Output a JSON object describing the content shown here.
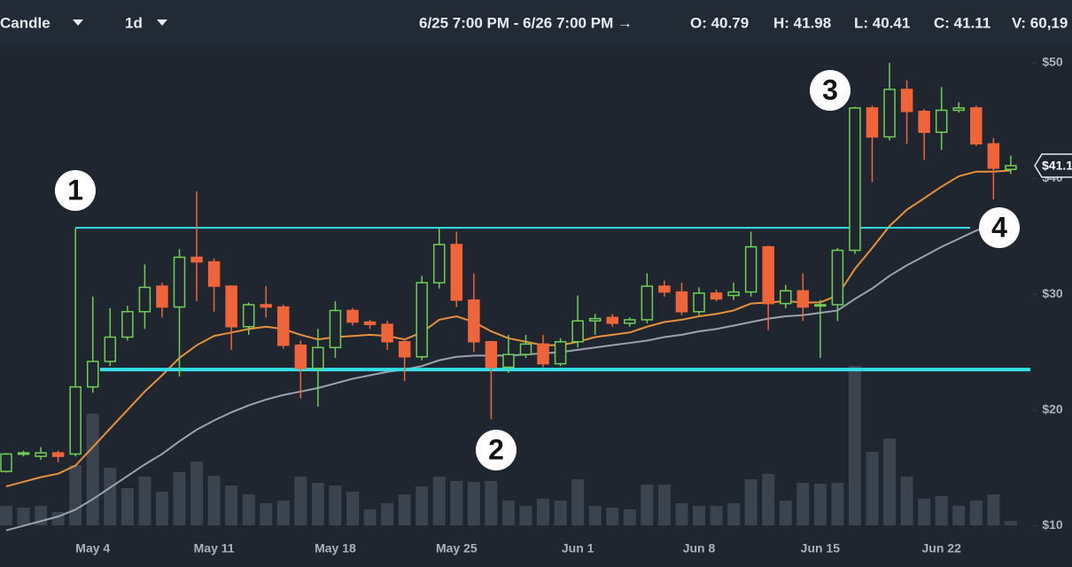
{
  "header": {
    "chart_type": "Candle",
    "interval": "1d",
    "range": "6/25 7:00 PM - 6/26 7:00 PM →",
    "open": "O: 40.79",
    "high": "H: 41.98",
    "low": "L: 40.41",
    "close": "C: 41.11",
    "volume": "V: 60,19"
  },
  "chart_data": {
    "type": "candlestick",
    "categories": [
      null,
      null,
      null,
      null,
      null,
      "May 4",
      null,
      null,
      null,
      null,
      null,
      null,
      "May 11",
      null,
      null,
      null,
      null,
      null,
      null,
      "May 18",
      null,
      null,
      null,
      null,
      null,
      null,
      "May 25",
      null,
      null,
      null,
      null,
      null,
      null,
      "Jun 1",
      null,
      null,
      null,
      null,
      null,
      null,
      "Jun 8",
      null,
      null,
      null,
      null,
      null,
      null,
      "Jun 15",
      null,
      null,
      null,
      null,
      null,
      null,
      "Jun 22",
      null,
      null,
      null,
      null
    ],
    "open": [
      14.7,
      16.2,
      16.0,
      16.3,
      16.2,
      22.0,
      24.2,
      26.3,
      28.5,
      30.7,
      28.9,
      33.2,
      32.8,
      30.7,
      27.2,
      29.1,
      28.9,
      25.6,
      23.6,
      25.4,
      28.6,
      27.6,
      27.4,
      25.9,
      24.6,
      31.0,
      34.3,
      29.5,
      25.9,
      23.7,
      24.8,
      25.7,
      24.0,
      25.9,
      27.7,
      28.0,
      27.5,
      27.8,
      30.7,
      30.2,
      28.5,
      30.1,
      29.9,
      30.2,
      34.1,
      29.2,
      30.3,
      29.0,
      29.1,
      33.8,
      46.1,
      43.6,
      47.7,
      45.8,
      44.0,
      45.9,
      46.1,
      43.0,
      40.79
    ],
    "high": [
      16.3,
      16.5,
      16.8,
      16.5,
      35.7,
      29.8,
      28.8,
      29.0,
      32.6,
      31.0,
      33.9,
      38.9,
      33.1,
      30.8,
      29.3,
      30.7,
      29.1,
      26.0,
      27.0,
      29.4,
      28.8,
      27.8,
      27.7,
      26.2,
      31.6,
      35.7,
      35.4,
      31.8,
      26.0,
      26.5,
      26.5,
      26.5,
      26.2,
      29.9,
      28.3,
      28.3,
      28.0,
      31.8,
      31.2,
      31.0,
      30.6,
      30.4,
      31.0,
      35.4,
      34.2,
      30.8,
      31.8,
      29.5,
      34.0,
      46.2,
      46.3,
      50.0,
      48.5,
      46.0,
      47.9,
      46.6,
      46.3,
      43.5,
      41.98
    ],
    "low": [
      14.6,
      16.0,
      15.7,
      15.5,
      16.0,
      21.5,
      23.8,
      26.0,
      27.0,
      28.0,
      22.9,
      29.4,
      28.5,
      25.2,
      26.5,
      28.0,
      25.3,
      21.0,
      20.3,
      24.5,
      27.3,
      27.0,
      25.2,
      22.5,
      24.3,
      30.5,
      28.9,
      25.0,
      19.2,
      23.2,
      24.5,
      23.7,
      23.8,
      25.4,
      26.5,
      27.2,
      27.2,
      27.5,
      29.8,
      28.2,
      28.2,
      29.4,
      29.5,
      29.8,
      26.9,
      28.8,
      27.7,
      24.5,
      27.7,
      33.5,
      39.7,
      43.3,
      43.0,
      41.6,
      42.5,
      45.7,
      42.8,
      38.2,
      40.41
    ],
    "close": [
      16.2,
      16.3,
      16.3,
      16.0,
      22.0,
      24.2,
      26.3,
      28.5,
      30.6,
      28.9,
      33.2,
      32.8,
      30.7,
      27.2,
      29.1,
      28.9,
      25.6,
      23.6,
      25.4,
      28.6,
      27.6,
      27.4,
      25.9,
      24.6,
      31.0,
      34.3,
      29.5,
      25.9,
      23.7,
      24.8,
      25.7,
      24.0,
      25.9,
      27.7,
      27.9,
      27.5,
      27.8,
      30.7,
      30.2,
      28.5,
      30.1,
      29.6,
      30.2,
      34.1,
      29.2,
      30.3,
      28.9,
      29.1,
      33.8,
      46.1,
      43.6,
      47.7,
      45.8,
      44.0,
      45.9,
      46.1,
      43.0,
      40.9,
      41.11
    ],
    "volume": [
      22,
      20,
      22,
      15,
      68,
      126,
      65,
      42,
      55,
      38,
      60,
      72,
      56,
      45,
      35,
      25,
      28,
      55,
      48,
      45,
      38,
      18,
      25,
      35,
      44,
      55,
      50,
      49,
      50,
      28,
      22,
      30,
      28,
      52,
      22,
      20,
      18,
      46,
      46,
      25,
      22,
      22,
      25,
      52,
      58,
      28,
      48,
      47,
      48,
      180,
      83,
      98,
      55,
      30,
      33,
      22,
      28,
      35,
      5
    ],
    "vlim": [
      0,
      200
    ],
    "series": [
      {
        "color": "#e8913a",
        "values": [
          13.4,
          13.8,
          14.2,
          14.5,
          15.2,
          16.8,
          18.4,
          20.0,
          21.6,
          23.0,
          24.5,
          25.6,
          26.4,
          26.7,
          27.0,
          27.2,
          27.0,
          26.5,
          26.1,
          26.3,
          26.4,
          26.5,
          26.4,
          26.1,
          26.7,
          27.8,
          28.1,
          27.6,
          26.8,
          26.2,
          25.9,
          25.6,
          25.6,
          25.9,
          26.3,
          26.5,
          26.7,
          27.2,
          27.6,
          27.8,
          28.1,
          28.3,
          28.6,
          29.2,
          29.3,
          29.4,
          29.3,
          29.3,
          29.9,
          32.2,
          34.0,
          35.9,
          37.3,
          38.3,
          39.3,
          40.2,
          40.6,
          40.6,
          40.7
        ]
      },
      {
        "color": "#9aa3b0",
        "values": [
          9.6,
          10.0,
          10.4,
          10.8,
          11.4,
          12.3,
          13.3,
          14.3,
          15.3,
          16.2,
          17.3,
          18.3,
          19.1,
          19.8,
          20.4,
          20.9,
          21.3,
          21.6,
          21.9,
          22.3,
          22.7,
          23.0,
          23.3,
          23.5,
          23.8,
          24.3,
          24.6,
          24.7,
          24.7,
          24.7,
          24.8,
          24.9,
          25.0,
          25.2,
          25.4,
          25.6,
          25.8,
          26.0,
          26.3,
          26.5,
          26.8,
          27.0,
          27.3,
          27.6,
          27.9,
          28.1,
          28.2,
          28.4,
          28.6,
          29.6,
          30.5,
          31.6,
          32.5,
          33.3,
          34.1,
          34.8,
          35.5,
          36.0,
          36.6
        ]
      }
    ],
    "up_color": "#6fcf55",
    "down_color": "#f0643a",
    "volume_color": "#3a434e",
    "ylim": [
      9.5,
      51.6
    ],
    "yticks": [
      {
        "value": 10,
        "label": "$10"
      },
      {
        "value": 20,
        "label": "$20"
      },
      {
        "value": 30,
        "label": "$30"
      },
      {
        "value": 40,
        "label": "$40"
      },
      {
        "value": 50,
        "label": "$50"
      }
    ],
    "last_price_label": "$41.1",
    "levels": [
      35.75,
      23.5
    ],
    "level_color": "#33e0e8",
    "annotations": [
      "1",
      "2",
      "3",
      "4"
    ]
  }
}
